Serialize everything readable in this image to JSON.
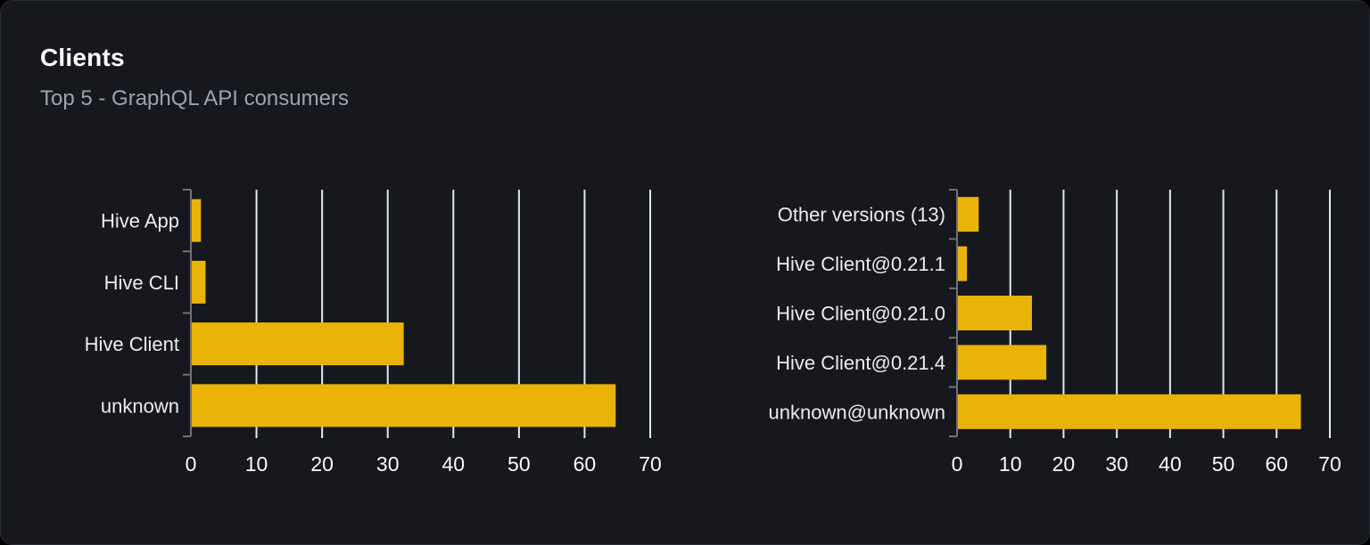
{
  "card": {
    "title": "Clients",
    "subtitle": "Top 5 - GraphQL API consumers"
  },
  "colors": {
    "page_bg": "#000000",
    "card_bg": "#16181d",
    "card_border": "#282c34",
    "title": "#ffffff",
    "subtitle": "#9ca3af",
    "bar": "#eab308",
    "grid": "#e2e8f0",
    "axis": "#71717a",
    "category_label": "#ebedef",
    "tick_label": "#f8fafc"
  },
  "chart_data": [
    {
      "type": "bar",
      "orientation": "horizontal",
      "title": "",
      "xlabel": "",
      "ylabel": "",
      "legend": "none",
      "grid": true,
      "bar_color": "#eab308",
      "xlim": [
        0,
        70
      ],
      "xticks": [
        0,
        10,
        20,
        30,
        40,
        50,
        60,
        70
      ],
      "categories": [
        "Hive App",
        "Hive CLI",
        "Hive Client",
        "unknown"
      ],
      "values": [
        1.4,
        2.1,
        32.3,
        64.6
      ]
    },
    {
      "type": "bar",
      "orientation": "horizontal",
      "title": "",
      "xlabel": "",
      "ylabel": "",
      "legend": "none",
      "grid": true,
      "bar_color": "#eab308",
      "xlim": [
        0,
        70
      ],
      "xticks": [
        0,
        10,
        20,
        30,
        40,
        50,
        60,
        70
      ],
      "categories": [
        "Other versions (13)",
        "Hive Client@0.21.1",
        "Hive Client@0.21.0",
        "Hive Client@0.21.4",
        "unknown@unknown"
      ],
      "values": [
        3.9,
        1.7,
        13.9,
        16.6,
        64.4
      ]
    }
  ]
}
